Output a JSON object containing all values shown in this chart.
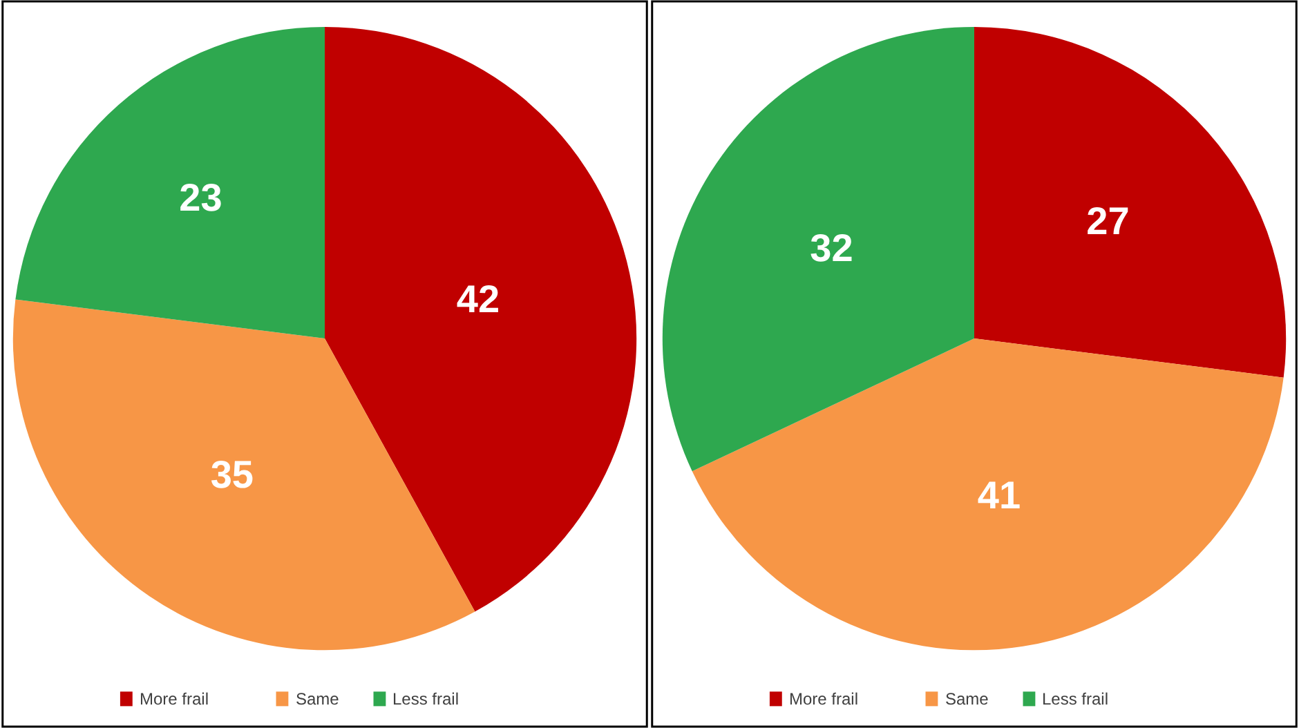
{
  "chart_data": [
    {
      "type": "pie",
      "categories": [
        "More frail",
        "Same",
        "Less frail"
      ],
      "values": [
        42,
        35,
        23
      ],
      "colors": [
        "#c00000",
        "#f79646",
        "#2ea84f"
      ],
      "data_labels": true,
      "legend": "bottom"
    },
    {
      "type": "pie",
      "categories": [
        "More frail",
        "Same",
        "Less frail"
      ],
      "values": [
        27,
        41,
        32
      ],
      "colors": [
        "#c00000",
        "#f79646",
        "#2ea84f"
      ],
      "data_labels": true,
      "legend": "bottom"
    }
  ]
}
